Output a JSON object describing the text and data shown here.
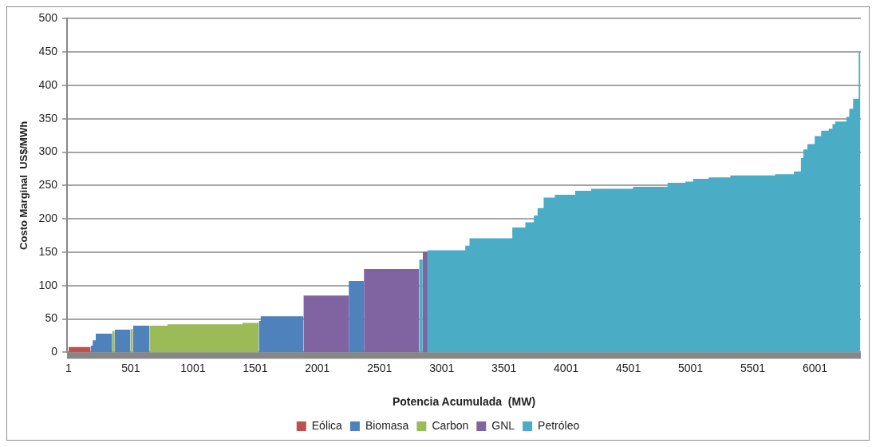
{
  "chart_data": {
    "type": "area",
    "xlabel": "Potencia Acumulada  (MW)",
    "ylabel": "Costo Marginal  US$/MWh",
    "xlim": [
      -12,
      6370
    ],
    "xticks": [
      1,
      501,
      1001,
      1501,
      2001,
      2501,
      3001,
      3501,
      4001,
      4501,
      5001,
      5501,
      6001
    ],
    "ylim": [
      0,
      500
    ],
    "yticks": [
      0,
      50,
      100,
      150,
      200,
      250,
      300,
      350,
      400,
      450,
      500
    ],
    "grid": "y",
    "legend": "bottom",
    "series": [
      {
        "name": "Eólica",
        "color": "#c0504d",
        "x": [
          1,
          178
        ],
        "values": [
          8,
          8
        ]
      },
      {
        "name": "Biomasa",
        "color": "#4f81bd",
        "x": [
          178,
          195,
          195,
          219,
          219,
          352,
          null,
          372,
          498,
          null,
          518,
          651,
          null,
          1530,
          1545,
          1545,
          1889,
          null,
          2253,
          2375
        ],
        "values": [
          10,
          10,
          18,
          18,
          28,
          28,
          null,
          34,
          34,
          null,
          40,
          40,
          null,
          47,
          47,
          54,
          54,
          null,
          107,
          107
        ]
      },
      {
        "name": "Carbon",
        "color": "#9bbb59",
        "x": [
          352,
          372,
          null,
          498,
          518,
          null,
          651,
          797,
          797,
          1399,
          1399,
          1530
        ],
        "values": [
          32,
          32,
          null,
          35,
          35,
          null,
          40,
          40,
          42,
          42,
          44,
          44
        ]
      },
      {
        "name": "GNL",
        "color": "#8064a2",
        "x": [
          1889,
          2253,
          null,
          2375,
          2819,
          null,
          2848,
          2887
        ],
        "values": [
          85,
          85,
          null,
          125,
          125,
          null,
          151,
          151
        ]
      },
      {
        "name": "Petróleo",
        "color": "#4bacc6",
        "x": [
          2819,
          2848,
          null,
          2887,
          3190,
          3190,
          3224,
          3224,
          3568,
          3568,
          3673,
          3673,
          3741,
          3741,
          3771,
          3771,
          3820,
          3820,
          3910,
          3910,
          4074,
          4074,
          4202,
          4202,
          4539,
          4539,
          4816,
          4816,
          4960,
          4960,
          5022,
          5022,
          5146,
          5146,
          5321,
          5321,
          5681,
          5681,
          5832,
          5832,
          5888,
          5888,
          5908,
          5908,
          5941,
          5941,
          5999,
          5999,
          6051,
          6051,
          6112,
          6112,
          6142,
          6142,
          6164,
          6164,
          6254,
          6254,
          6277,
          6277,
          6308,
          6308,
          6353,
          6353,
          6366
        ],
        "values": [
          139,
          139,
          null,
          153,
          153,
          160,
          160,
          171,
          171,
          187,
          187,
          195,
          195,
          205,
          205,
          216,
          216,
          232,
          232,
          236,
          236,
          242,
          242,
          245,
          245,
          248,
          248,
          254,
          254,
          256,
          256,
          260,
          260,
          262,
          262,
          265,
          265,
          267,
          267,
          271,
          271,
          291,
          291,
          304,
          304,
          312,
          312,
          324,
          324,
          332,
          332,
          335,
          335,
          342,
          342,
          346,
          346,
          353,
          353,
          365,
          365,
          380,
          380,
          450,
          450
        ]
      }
    ]
  }
}
